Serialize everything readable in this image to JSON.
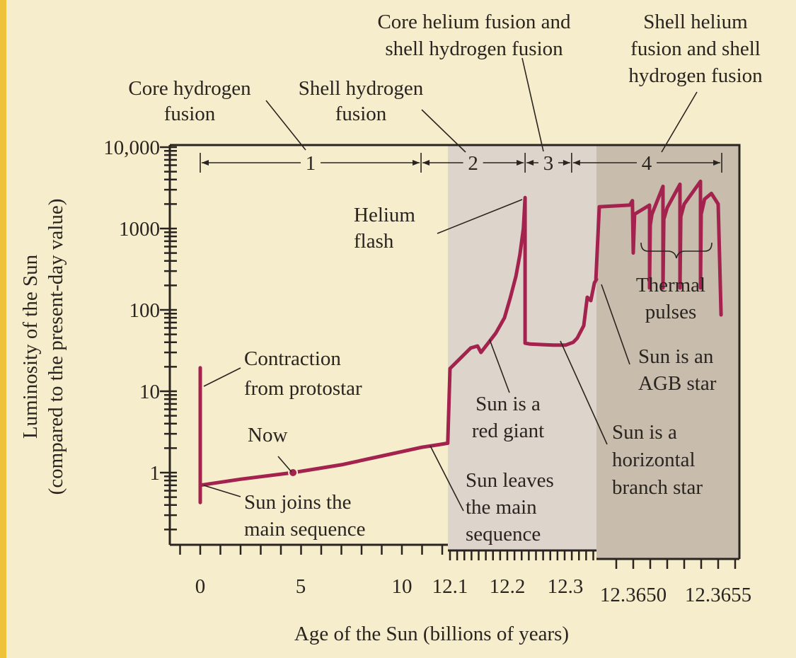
{
  "chart_data": {
    "type": "line",
    "xlabel": "Age of the Sun (billions of years)",
    "ylabel": [
      "Luminosity of the Sun",
      "(compared to the present-day value)"
    ],
    "yscale": "log",
    "ylim": [
      0.13,
      10700
    ],
    "y_ticks": [
      {
        "value": 10000,
        "label": "10,000"
      },
      {
        "value": 1000,
        "label": "1000"
      },
      {
        "value": 100,
        "label": "100"
      },
      {
        "value": 10,
        "label": "10"
      },
      {
        "value": 1,
        "label": "1"
      }
    ],
    "x_axis_panels": [
      {
        "range": [
          0,
          12.05
        ],
        "tick_labels": [
          {
            "value": 0,
            "label": "0"
          },
          {
            "value": 5,
            "label": "5"
          },
          {
            "value": 10,
            "label": "10"
          }
        ]
      },
      {
        "range": [
          12.09,
          12.356
        ],
        "tick_labels": [
          {
            "value": 12.1,
            "label": "12.1"
          },
          {
            "value": 12.2,
            "label": "12.2"
          },
          {
            "value": 12.3,
            "label": "12.3"
          }
        ]
      },
      {
        "range": [
          12.36478,
          12.3656
        ],
        "tick_labels": [
          {
            "value": 12.365,
            "label": "12.3650"
          },
          {
            "value": 12.3655,
            "label": "12.3655"
          }
        ]
      }
    ],
    "grid": false,
    "colors": {
      "curve": "#a3224e",
      "background": "#f6edcc",
      "panel2": "#ddd5cb",
      "panel3": "#c8bdad",
      "stripe": "#eec23a"
    },
    "series": [
      {
        "segments": [
          [
            [
              0,
              19.4
            ],
            [
              0,
              0.43
            ]
          ],
          [
            [
              0,
              0.7
            ],
            [
              2,
              0.83
            ],
            [
              4.6,
              1.0
            ],
            [
              7,
              1.25
            ],
            [
              9,
              1.6
            ],
            [
              11,
              2.05
            ],
            [
              11.8,
              2.2
            ],
            [
              12.096,
              2.3
            ],
            [
              12.1,
              19
            ],
            [
              12.136,
              34
            ],
            [
              12.148,
              36
            ],
            [
              12.154,
              30
            ],
            [
              12.17,
              42
            ],
            [
              12.18,
              52
            ],
            [
              12.195,
              80
            ],
            [
              12.205,
              140
            ],
            [
              12.215,
              260
            ],
            [
              12.222,
              480
            ],
            [
              12.228,
              1000
            ],
            [
              12.231,
              2400
            ],
            [
              12.231,
              39
            ],
            [
              12.24,
              38
            ],
            [
              12.28,
              37
            ],
            [
              12.302,
              37
            ],
            [
              12.315,
              40
            ],
            [
              12.322,
              45
            ],
            [
              12.3333,
              64
            ],
            [
              12.3395,
              143
            ],
            [
              12.3457,
              130
            ],
            [
              12.352,
              215
            ],
            [
              12.3556,
              237
            ],
            [
              12.36478,
              240
            ],
            [
              12.3648,
              1850
            ],
            [
              12.364979,
              1940
            ],
            [
              12.364995,
              2200
            ],
            [
              12.365,
              500
            ],
            [
              12.365008,
              1500
            ],
            [
              12.365096,
              1940
            ],
            [
              12.365096,
              186
            ],
            [
              12.3651,
              1100
            ],
            [
              12.36511,
              1500
            ],
            [
              12.365175,
              3300
            ],
            [
              12.365175,
              186
            ],
            [
              12.36518,
              1300
            ],
            [
              12.3652,
              1800
            ],
            [
              12.365275,
              3500
            ],
            [
              12.365275,
              186
            ],
            [
              12.36528,
              1400
            ],
            [
              12.3653,
              2000
            ],
            [
              12.365396,
              3800
            ],
            [
              12.365396,
              186
            ],
            [
              12.3654,
              1500
            ],
            [
              12.36542,
              2300
            ],
            [
              12.36546,
              2700
            ],
            [
              12.3655,
              2000
            ],
            [
              12.365517,
              87
            ]
          ]
        ]
      }
    ],
    "markers": [
      {
        "label": "Now",
        "x": 4.6,
        "y": 1.0
      }
    ],
    "phases": [
      {
        "label": "1",
        "start": 0,
        "end": 10.95
      },
      {
        "label": "2",
        "start": 10.95,
        "end": 12.231
      },
      {
        "label": "3",
        "start": 12.231,
        "end": 12.3122
      },
      {
        "label": "4",
        "start": 12.3122,
        "end": 12.365521
      }
    ],
    "annotations": {
      "core_h": [
        "Core hydrogen",
        "fusion"
      ],
      "shell_h": [
        "Shell hydrogen",
        "fusion"
      ],
      "core_he": [
        "Core helium fusion and",
        "shell hydrogen fusion"
      ],
      "shell_he": [
        "Shell helium",
        "fusion and shell",
        "hydrogen fusion"
      ],
      "helium_flash": [
        "Helium",
        "flash"
      ],
      "contraction": [
        "Contraction",
        "from protostar"
      ],
      "now": "Now",
      "joins": [
        "Sun joins the",
        "main sequence"
      ],
      "red_giant": [
        "Sun is a",
        "red giant"
      ],
      "leaves": [
        "Sun leaves",
        "the main",
        "sequence"
      ],
      "horizontal": [
        "Sun is a",
        "horizontal",
        "branch star"
      ],
      "thermal": [
        "Thermal",
        "pulses"
      ],
      "agb": [
        "Sun is an",
        "AGB star"
      ]
    }
  }
}
